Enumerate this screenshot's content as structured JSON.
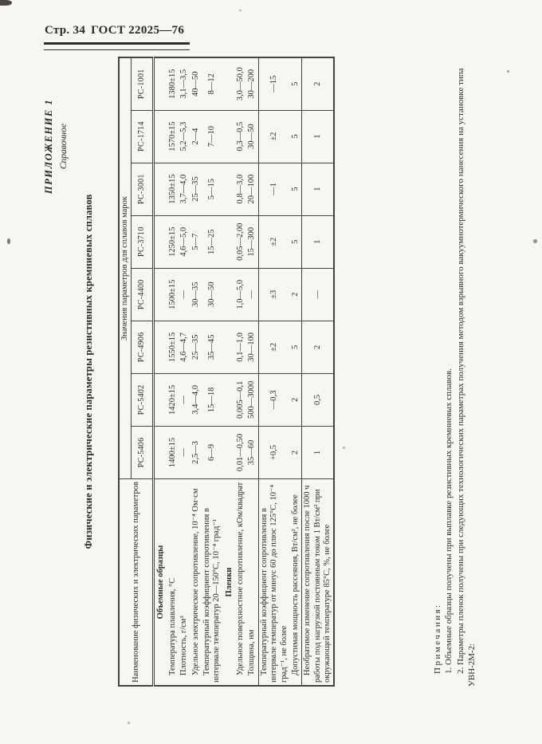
{
  "page_header": {
    "page_label": "Стр. 34",
    "doc_number": "ГОСТ 22025—76"
  },
  "appendix": {
    "title": "ПРИЛОЖЕНИЕ 1",
    "subtitle": "Справочное"
  },
  "table": {
    "title": "Физические и электрические параметры резистивных кремниевых сплавов",
    "name_col_header": "Наименование физических и электрических параметров",
    "values_header": "Значения параметров для сплавов марок",
    "columns": [
      "РС-5406",
      "РС-5402",
      "РС-4906",
      "РС-4400",
      "РС-3710",
      "РС-3001",
      "РС-1714",
      "РС-1001"
    ],
    "rows": [
      {
        "kind": "section",
        "label": "Объемные образцы"
      },
      {
        "kind": "param",
        "label": "Температура плавления, °С",
        "values": [
          "1400±15",
          "1420±15",
          "1550±15",
          "1500±15",
          "1250±15",
          "1350±15",
          "1570±15",
          "1380±15"
        ]
      },
      {
        "kind": "param",
        "label": "Плотность, г/см³",
        "values": [
          "—",
          "—",
          "4,6—4,7",
          "—",
          "4,6—5,0",
          "3,7—4,0",
          "5,2—5,3",
          "3,1—3,5"
        ]
      },
      {
        "kind": "param",
        "label": "Удельное электрическое сопротивление, 10⁻⁴ Ом·см",
        "values": [
          "2,5—3",
          "3,4—4,0",
          "25—35",
          "30—35",
          "5—7",
          "25—35",
          "2—4",
          "40—50"
        ]
      },
      {
        "kind": "param",
        "label": "Температурный коэффициент сопротивления в интервале температур 20—150°С, 10⁻⁴ град⁻¹",
        "values": [
          "6—9",
          "15—18",
          "35—45",
          "30—50",
          "15—25",
          "5—15",
          "7—10",
          "8—12"
        ]
      },
      {
        "kind": "section",
        "label": "Пленки"
      },
      {
        "kind": "param",
        "label": "Удельное поверхностное сопротивление, кОм/квадрат",
        "values": [
          "0,01—0,50",
          "0,005—0,1",
          "0,1—1,0",
          "1,0—5,0",
          "0,05—2,00",
          "0,8—3,0",
          "0,3—0,5",
          "3,0—50,0"
        ]
      },
      {
        "kind": "param",
        "label": "Толщина, нм",
        "rule_below": true,
        "values": [
          "35—60",
          "500—3000",
          "30—100",
          "—",
          "15—300",
          "20—100",
          "30—50",
          "30—200"
        ]
      },
      {
        "kind": "param",
        "label": "Температурный коэффициент сопротивления в интервале температур от минус 60 до плюс 125°С, 10⁻⁴ град⁻¹, не более",
        "values": [
          "+0,5",
          "—0,3",
          "±2",
          "±3",
          "±2",
          "—1",
          "±2",
          "—15"
        ]
      },
      {
        "kind": "param",
        "label": "Допустимая мощность рассеяния, Вт/см², не более",
        "rule_below": true,
        "values": [
          "2",
          "2",
          "5",
          "2",
          "5",
          "5",
          "5",
          "5"
        ]
      },
      {
        "kind": "param",
        "label": "Необратимое изменение сопротивления после 1000 ч работы под нагрузкой постоянным током 1 Вт/см² при окружающей температуре 85°С, %, не более",
        "values": [
          "1",
          "0,5",
          "2",
          "—",
          "1",
          "1",
          "1",
          "2"
        ]
      }
    ]
  },
  "notes": {
    "heading": "Примечания:",
    "items": [
      "1. Объемные образцы получены при выплавке резистивных кремниевых сплавов.",
      "2. Параметры пленок получены при следующих технологических параметрах получения методом взрывного вакуумнотермического нанесения на установке типа УВН-2М-2:"
    ]
  }
}
